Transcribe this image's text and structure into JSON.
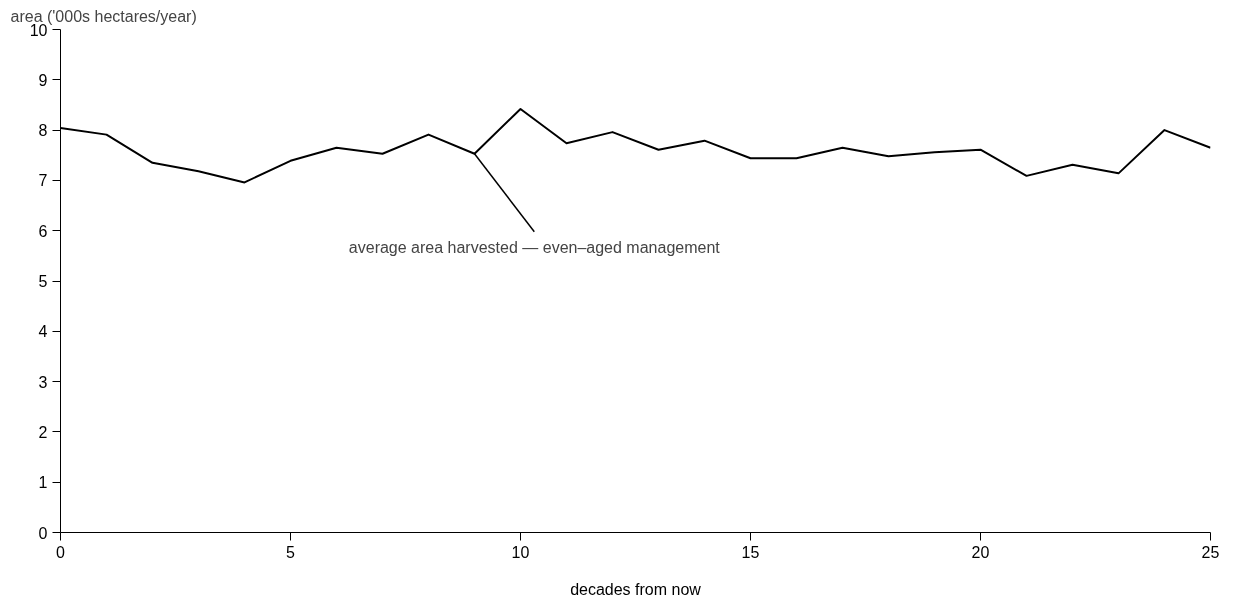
{
  "chart_data": {
    "type": "line",
    "ylabel": "area ('000s hectares/year)",
    "xlabel": "decades from now",
    "x": [
      0,
      1,
      2,
      3,
      4,
      5,
      6,
      7,
      8,
      9,
      10,
      11,
      12,
      13,
      14,
      15,
      16,
      17,
      18,
      19,
      20,
      21,
      22,
      23,
      24,
      25
    ],
    "series": [
      {
        "color": "#000000",
        "values": [
          8.04,
          7.91,
          7.35,
          7.18,
          6.96,
          7.39,
          7.65,
          7.53,
          7.91,
          7.53,
          8.42,
          7.74,
          7.96,
          7.61,
          7.79,
          7.44,
          7.44,
          7.65,
          7.48,
          7.56,
          7.61,
          7.09,
          7.31,
          7.14,
          8.0,
          7.65
        ]
      }
    ],
    "annotations": [
      {
        "text": "average area harvested — even–aged management",
        "x": 9,
        "y": 7.53
      }
    ],
    "xlim": [
      0,
      25
    ],
    "xticks": [
      0,
      5,
      10,
      15,
      20,
      25
    ],
    "ylim": [
      0,
      10
    ],
    "yticks": [
      0,
      1,
      2,
      3,
      4,
      5,
      6,
      7,
      8,
      9,
      10
    ],
    "grid": false,
    "marker": "none",
    "line_style": "solid"
  }
}
